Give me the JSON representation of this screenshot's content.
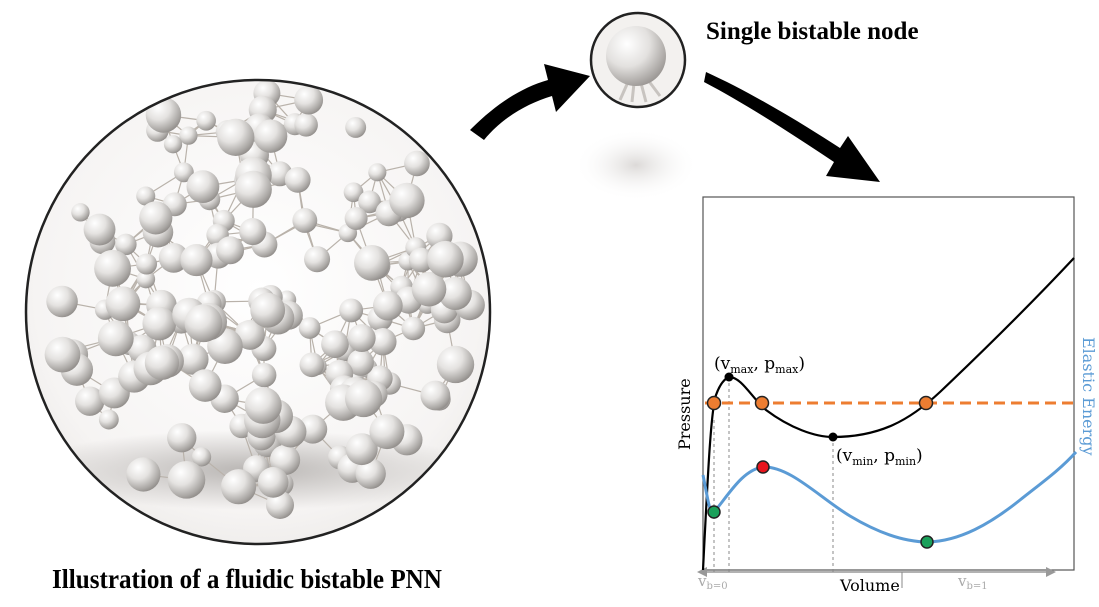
{
  "node_panel": {
    "title": "Single bistable node"
  },
  "network_panel": {
    "caption": "Illustration of a fluidic bistable PNN"
  },
  "plot": {
    "y_label_left": "Pressure",
    "y_label_right": "Elastic Energy",
    "x_label": "Volume",
    "max_point": {
      "open": "(v",
      "sub1": "max",
      "comma": ", p",
      "sub2": "max",
      "close": ")"
    },
    "min_point": {
      "open": "(v",
      "sub1": "min",
      "comma": ", p",
      "sub2": "min",
      "close": ")"
    },
    "v_b0": {
      "base": "v",
      "sub": "b=0"
    },
    "v_b1": {
      "base": "v",
      "sub": "b=1"
    },
    "colors": {
      "pressure_curve": "#000000",
      "energy_curve": "#5b9bd5",
      "threshold_line": "#ed7d31",
      "orange_marker": "#ed7d31",
      "red_marker": "#e8141c",
      "green_marker": "#1aa05a",
      "energy_label": "#5b9bd5"
    }
  }
}
